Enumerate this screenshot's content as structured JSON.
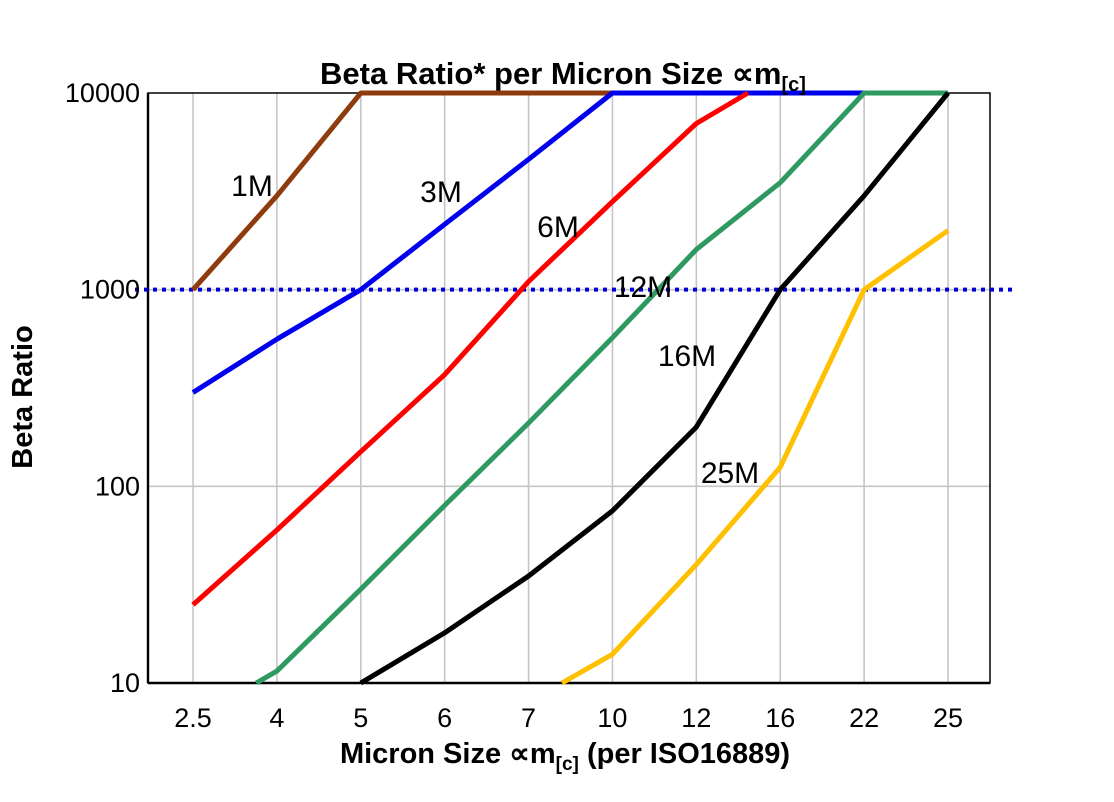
{
  "title": {
    "main": "Beta Ratio* per Micron Size ",
    "symbol": "∝m",
    "subscript": "[c]"
  },
  "y_axis": {
    "title": "Beta Ratio",
    "scale": "log",
    "tick_labels": [
      "10000",
      "1000",
      "100",
      "10"
    ],
    "tick_values": [
      10000,
      1000,
      100,
      10
    ]
  },
  "x_axis": {
    "title_prefix": "Micron Size ",
    "title_symbol": "∝m",
    "title_subscript": "[c]",
    "title_suffix": " (per ISO16889)",
    "tick_labels": [
      "2.5",
      "4",
      "5",
      "6",
      "7",
      "10",
      "12",
      "16",
      "22",
      "25"
    ]
  },
  "reference_line": {
    "beta_value": 1000,
    "style": "dotted",
    "color": "#0000DD"
  },
  "theme": {
    "background": "#FFFFFF",
    "gridline": "#C6C6C6",
    "frame": "#000000",
    "text": "#000000"
  },
  "chart_data": {
    "type": "line",
    "x_type": "categorical",
    "categories": [
      2.5,
      4,
      5,
      6,
      7,
      10,
      12,
      16,
      22,
      25
    ],
    "y_scale": "log",
    "ylim": [
      10,
      10000
    ],
    "grid": "both",
    "legend_position": "inline-labels",
    "note": "values above 10000 or below 10 are clipped at the plot boundary",
    "series": [
      {
        "name": "1M",
        "color": "#8E3B0E",
        "label_color": "#A97E4E",
        "values": [
          1000,
          3000,
          10000,
          10000,
          10000,
          10000,
          null,
          null,
          null,
          null
        ]
      },
      {
        "name": "3M",
        "color": "#0000EE",
        "label_color": "#0000EE",
        "values": [
          300,
          560,
          1000,
          2150,
          4600,
          10000,
          10000,
          10000,
          10000,
          null
        ]
      },
      {
        "name": "6M",
        "color": "#FF0000",
        "label_color": "#FF0000",
        "values": [
          25,
          60,
          150,
          370,
          1100,
          2800,
          7000,
          12500,
          null,
          null
        ]
      },
      {
        "name": "12M",
        "color": "#2E9A62",
        "label_color": "#00A550",
        "values": [
          6.5,
          11.5,
          30,
          80,
          210,
          570,
          1600,
          3500,
          10000,
          10000
        ]
      },
      {
        "name": "16M",
        "color": "#000000",
        "label_color": "#000000",
        "values": [
          null,
          null,
          10,
          18,
          35,
          75,
          200,
          1000,
          3000,
          10000
        ]
      },
      {
        "name": "25M",
        "color": "#FFC000",
        "label_color": "#FFC000",
        "values": [
          null,
          null,
          null,
          null,
          8,
          14,
          40,
          125,
          1000,
          2000
        ]
      }
    ],
    "label_positions": {
      "1M": [
        252,
        196
      ],
      "3M": [
        441,
        202
      ],
      "6M": [
        558,
        237
      ],
      "12M": [
        643,
        297
      ],
      "16M": [
        687,
        366
      ],
      "25M": [
        730,
        483
      ]
    }
  }
}
